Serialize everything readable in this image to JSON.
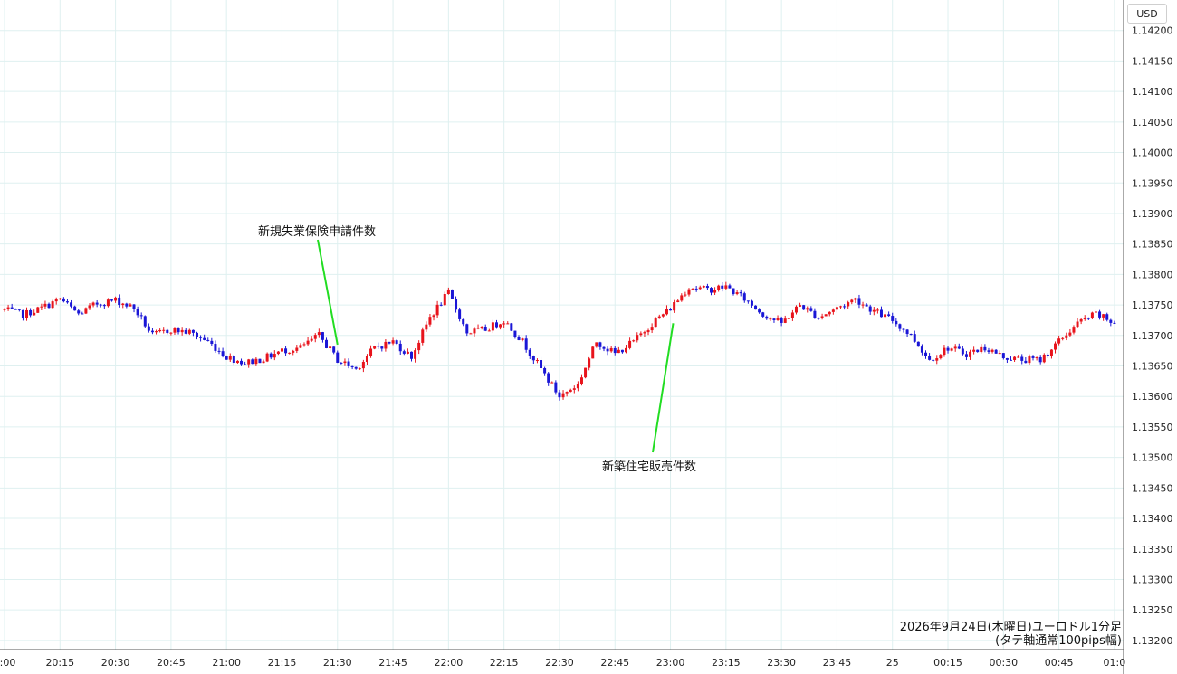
{
  "chart_data": {
    "type": "candlestick",
    "unit": "USD",
    "ylim": [
      1.13185,
      1.1425
    ],
    "y_ticks": [
      "1.14200",
      "1.14150",
      "1.14100",
      "1.14050",
      "1.14000",
      "1.13950",
      "1.13900",
      "1.13850",
      "1.13800",
      "1.13750",
      "1.13700",
      "1.13650",
      "1.13600",
      "1.13550",
      "1.13500",
      "1.13450",
      "1.13400",
      "1.13350",
      "1.13300",
      "1.13250",
      "1.13200"
    ],
    "x_ticks": [
      "0:00",
      "20:15",
      "20:30",
      "20:45",
      "21:00",
      "21:15",
      "21:30",
      "21:45",
      "22:00",
      "22:15",
      "22:30",
      "22:45",
      "23:00",
      "23:15",
      "23:30",
      "23:45",
      "25",
      "00:15",
      "00:30",
      "00:45",
      "01:0"
    ],
    "grid": true,
    "series": [
      {
        "time": "20:00",
        "close": 1.13742
      },
      {
        "time": "20:05",
        "close": 1.13734
      },
      {
        "time": "20:10",
        "close": 1.13745
      },
      {
        "time": "20:15",
        "close": 1.1376
      },
      {
        "time": "20:20",
        "close": 1.13735
      },
      {
        "time": "20:25",
        "close": 1.13752
      },
      {
        "time": "20:30",
        "close": 1.13758
      },
      {
        "time": "20:35",
        "close": 1.13745
      },
      {
        "time": "20:40",
        "close": 1.137
      },
      {
        "time": "20:45",
        "close": 1.1371
      },
      {
        "time": "20:50",
        "close": 1.13705
      },
      {
        "time": "20:55",
        "close": 1.1369
      },
      {
        "time": "21:00",
        "close": 1.13665
      },
      {
        "time": "21:05",
        "close": 1.13655
      },
      {
        "time": "21:10",
        "close": 1.13662
      },
      {
        "time": "21:15",
        "close": 1.13675
      },
      {
        "time": "21:20",
        "close": 1.1368
      },
      {
        "time": "21:25",
        "close": 1.137
      },
      {
        "time": "21:30",
        "close": 1.1366
      },
      {
        "time": "21:35",
        "close": 1.13645
      },
      {
        "time": "21:40",
        "close": 1.1368
      },
      {
        "time": "21:45",
        "close": 1.1369
      },
      {
        "time": "21:50",
        "close": 1.13665
      },
      {
        "time": "21:55",
        "close": 1.1373
      },
      {
        "time": "22:00",
        "close": 1.1377
      },
      {
        "time": "22:05",
        "close": 1.13705
      },
      {
        "time": "22:10",
        "close": 1.1371
      },
      {
        "time": "22:15",
        "close": 1.13725
      },
      {
        "time": "22:20",
        "close": 1.1369
      },
      {
        "time": "22:25",
        "close": 1.13645
      },
      {
        "time": "22:30",
        "close": 1.136
      },
      {
        "time": "22:35",
        "close": 1.1362
      },
      {
        "time": "22:40",
        "close": 1.1369
      },
      {
        "time": "22:45",
        "close": 1.1367
      },
      {
        "time": "22:50",
        "close": 1.1369
      },
      {
        "time": "22:55",
        "close": 1.1372
      },
      {
        "time": "23:00",
        "close": 1.13745
      },
      {
        "time": "23:05",
        "close": 1.1378
      },
      {
        "time": "23:10",
        "close": 1.13775
      },
      {
        "time": "23:15",
        "close": 1.1378
      },
      {
        "time": "23:20",
        "close": 1.1376
      },
      {
        "time": "23:25",
        "close": 1.13735
      },
      {
        "time": "23:30",
        "close": 1.1372
      },
      {
        "time": "23:35",
        "close": 1.1375
      },
      {
        "time": "23:40",
        "close": 1.1373
      },
      {
        "time": "23:45",
        "close": 1.13745
      },
      {
        "time": "23:50",
        "close": 1.1376
      },
      {
        "time": "23:55",
        "close": 1.1374
      },
      {
        "time": "00:00",
        "close": 1.13725
      },
      {
        "time": "00:05",
        "close": 1.137
      },
      {
        "time": "00:10",
        "close": 1.1366
      },
      {
        "time": "00:15",
        "close": 1.1368
      },
      {
        "time": "00:20",
        "close": 1.1367
      },
      {
        "time": "00:25",
        "close": 1.1368
      },
      {
        "time": "00:30",
        "close": 1.13665
      },
      {
        "time": "00:35",
        "close": 1.1366
      },
      {
        "time": "00:40",
        "close": 1.1366
      },
      {
        "time": "00:45",
        "close": 1.1369
      },
      {
        "time": "00:50",
        "close": 1.1372
      },
      {
        "time": "00:55",
        "close": 1.13735
      },
      {
        "time": "01:00",
        "close": 1.1372
      }
    ],
    "annotations": [
      {
        "text": "新規失業保険申請件数",
        "time": "21:30",
        "price": 1.13685
      },
      {
        "text": "新築住宅販売件数",
        "time": "23:00",
        "price": 1.1372
      }
    ],
    "caption": [
      "2026年9月24日(木曜日)ユーロドル1分足",
      "(タテ軸通常100pips幅)"
    ],
    "colors": {
      "up": "#e8141c",
      "down": "#1a16d6",
      "grid": "#dff0f0",
      "annot_line": "#22dd22",
      "axis": "#555555"
    }
  }
}
